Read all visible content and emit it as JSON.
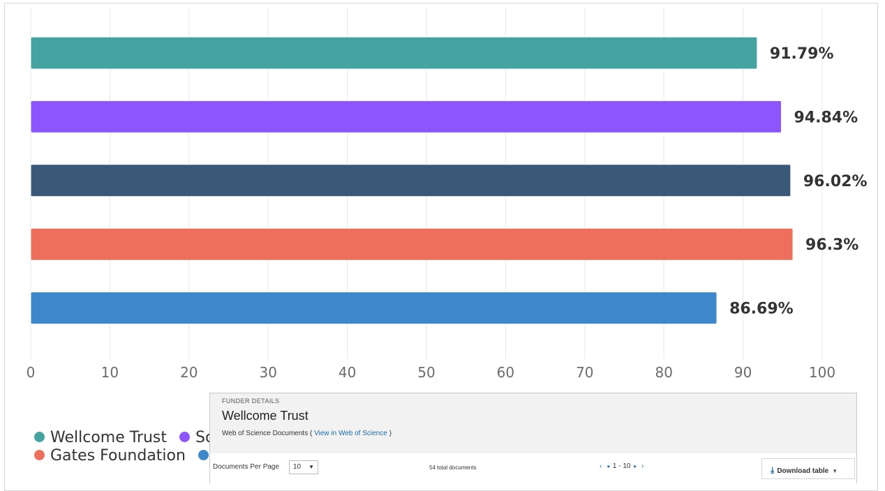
{
  "chart_data": {
    "type": "bar",
    "orientation": "horizontal",
    "categories": [
      "Wellcome Trust",
      "Sc",
      "",
      "Gates Foundation",
      ""
    ],
    "values": [
      91.79,
      94.84,
      96.02,
      96.3,
      86.69
    ],
    "value_labels": [
      "91.79%",
      "94.84%",
      "96.02%",
      "96.3%",
      "86.69%"
    ],
    "colors": [
      "#45a3a2",
      "#8c55fe",
      "#3a5878",
      "#ee705c",
      "#3f87cb"
    ],
    "xlim": [
      0,
      100
    ],
    "xticks": [
      0,
      10,
      20,
      30,
      40,
      50,
      60,
      70,
      80,
      90,
      100
    ],
    "grid": true,
    "legend_position": "bottom-left",
    "legend": [
      {
        "label": "Wellcome Trust",
        "color": "#45a3a2"
      },
      {
        "label": "Sc",
        "color": "#8c55fe"
      },
      {
        "label": "Gates Foundation",
        "color": "#ee705c"
      },
      {
        "label": "",
        "color": "#3f87cb"
      }
    ]
  },
  "popup": {
    "kicker": "FUNDER DETAILS",
    "title": "Wellcome Trust",
    "docs_label": "Web of Science Documents (",
    "docs_link": "View in Web of Science",
    "docs_close": ")",
    "per_page_label": "Documents Per Page",
    "per_page_value": "10",
    "total": "54 total documents",
    "page_range": "1 - 10",
    "download_label": "Download table"
  }
}
